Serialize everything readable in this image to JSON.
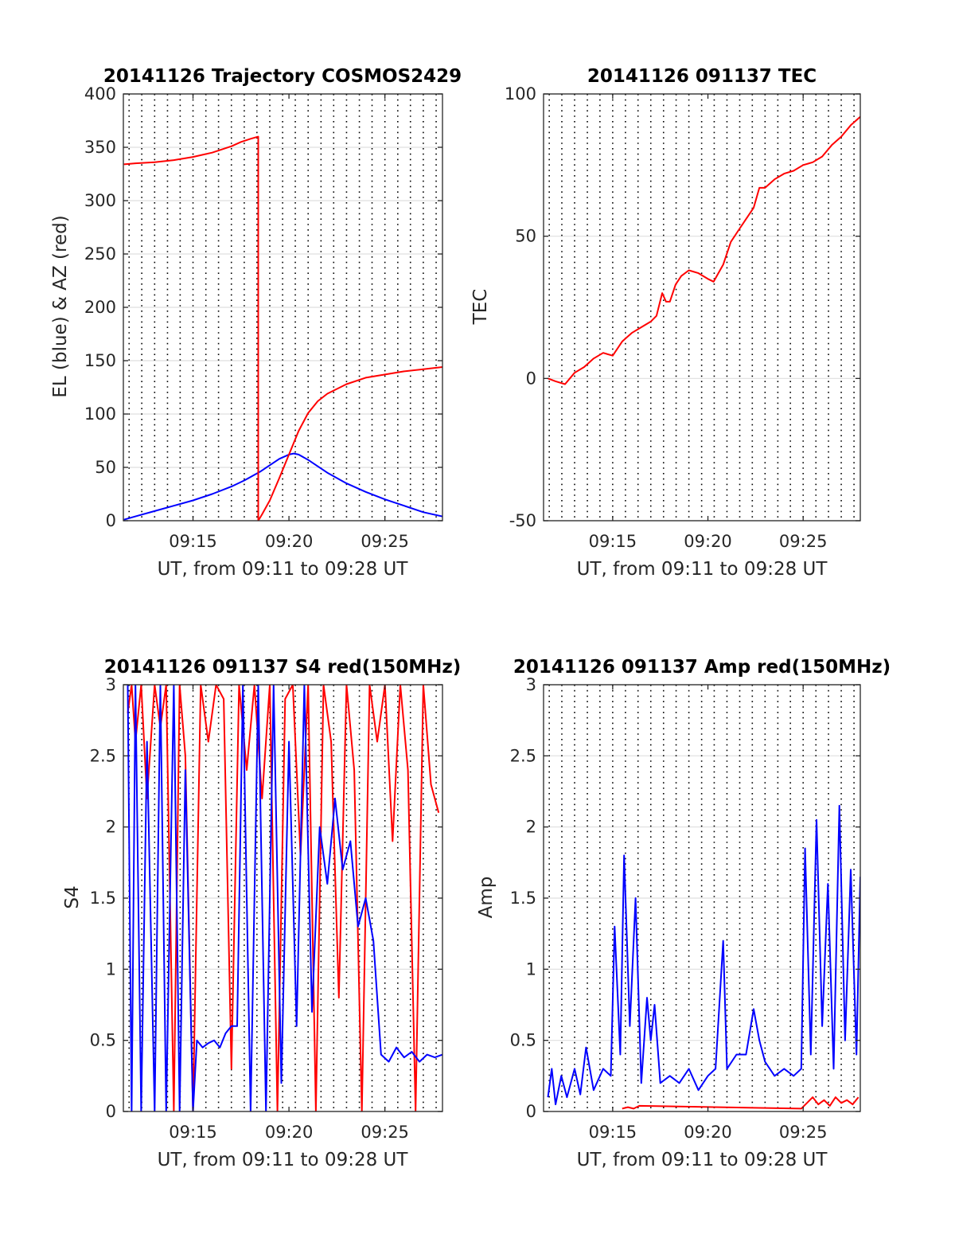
{
  "figure": {
    "date": "20141126"
  },
  "chart_data": [
    {
      "id": "trajectory",
      "type": "line",
      "title": "20141126 Trajectory COSMOS2429",
      "xlabel": "UT, from 09:11 to 09:28 UT",
      "ylabel": "EL (blue) & AZ (red)",
      "x_unit": "minutes after 09:00 UT",
      "xlim": [
        11.37,
        28.0
      ],
      "ylim": [
        0,
        400
      ],
      "x_ticks": [
        {
          "value": 15,
          "label": "09:15"
        },
        {
          "value": 20,
          "label": "09:20"
        },
        {
          "value": 25,
          "label": "09:25"
        }
      ],
      "y_ticks": [
        0,
        50,
        100,
        150,
        200,
        250,
        300,
        350,
        400
      ],
      "minor_x_grid": [
        11.67,
        12.33,
        13.0,
        13.67,
        14.33,
        15.0,
        15.67,
        16.33,
        17.0,
        17.67,
        18.33,
        19.0,
        19.67,
        20.33,
        21.0,
        21.67,
        22.33,
        23.0,
        23.67,
        24.33,
        25.0,
        25.67,
        26.33,
        27.0,
        27.67
      ],
      "grid": true,
      "series": [
        {
          "name": "EL",
          "color": "#0000ff",
          "x": [
            11.4,
            12.0,
            13.0,
            14.0,
            15.0,
            16.0,
            17.0,
            17.7,
            18.5,
            19.0,
            19.5,
            20.0,
            20.25,
            20.5,
            21.0,
            21.5,
            22.0,
            23.0,
            24.0,
            25.0,
            26.0,
            27.0,
            28.0
          ],
          "y": [
            1,
            4,
            9,
            14,
            19,
            25,
            32,
            38,
            46,
            52,
            58,
            62,
            63,
            62,
            57,
            51,
            45,
            35,
            27,
            20,
            14,
            8,
            4
          ]
        },
        {
          "name": "AZ",
          "color": "#ff0000",
          "x": [
            11.4,
            12.0,
            13.0,
            14.0,
            15.0,
            15.5,
            16.0,
            16.5,
            17.0,
            17.5,
            18.0,
            18.4,
            18.4,
            18.6,
            19.0,
            19.5,
            20.0,
            20.5,
            21.0,
            21.5,
            22.0,
            23.0,
            24.0,
            25.0,
            26.0,
            27.0,
            28.0
          ],
          "y": [
            334,
            335,
            336,
            338,
            341,
            343,
            345,
            348,
            351,
            355,
            358,
            360,
            0,
            6,
            19,
            40,
            62,
            84,
            101,
            112,
            119,
            128,
            134,
            137,
            140,
            142,
            144
          ]
        }
      ]
    },
    {
      "id": "tec",
      "type": "line",
      "title": "20141126 091137 TEC",
      "xlabel": "UT, from 09:11 to 09:28 UT",
      "ylabel": "TEC",
      "x_unit": "minutes after 09:00 UT",
      "xlim": [
        11.37,
        28.0
      ],
      "ylim": [
        -50,
        100
      ],
      "x_ticks": [
        {
          "value": 15,
          "label": "09:15"
        },
        {
          "value": 20,
          "label": "09:20"
        },
        {
          "value": 25,
          "label": "09:25"
        }
      ],
      "y_ticks": [
        -50,
        0,
        50,
        100
      ],
      "minor_x_grid": [
        11.67,
        12.33,
        13.0,
        13.67,
        14.33,
        15.0,
        15.67,
        16.33,
        17.0,
        17.67,
        18.33,
        19.0,
        19.67,
        20.33,
        21.0,
        21.67,
        22.33,
        23.0,
        23.67,
        24.33,
        25.0,
        25.67,
        26.33,
        27.0,
        27.67
      ],
      "grid": true,
      "series": [
        {
          "name": "TEC",
          "color": "#ff0000",
          "x": [
            11.6,
            12.0,
            12.5,
            13.0,
            13.5,
            14.0,
            14.5,
            15.0,
            15.5,
            16.0,
            16.5,
            17.0,
            17.3,
            17.6,
            17.8,
            18.0,
            18.3,
            18.6,
            19.0,
            19.5,
            20.0,
            20.3,
            20.8,
            21.2,
            21.6,
            22.0,
            22.4,
            22.7,
            23.0,
            23.5,
            24.0,
            24.5,
            25.0,
            25.5,
            26.0,
            26.5,
            27.0,
            27.5,
            28.0
          ],
          "y": [
            0,
            -1,
            -2,
            2,
            4,
            7,
            9,
            8,
            13,
            16,
            18,
            20,
            22,
            30,
            27,
            27,
            33,
            36,
            38,
            37,
            35,
            34,
            40,
            48,
            52,
            56,
            60,
            67,
            67,
            70,
            72,
            73,
            75,
            76,
            78,
            82,
            85,
            89,
            92
          ]
        }
      ]
    },
    {
      "id": "s4",
      "type": "line",
      "title": "20141126 091137 S4 red(150MHz)",
      "xlabel": "UT, from 09:11 to 09:28 UT",
      "ylabel": "S4",
      "x_unit": "minutes after 09:00 UT",
      "xlim": [
        11.37,
        28.0
      ],
      "ylim": [
        0,
        3
      ],
      "x_ticks": [
        {
          "value": 15,
          "label": "09:15"
        },
        {
          "value": 20,
          "label": "09:20"
        },
        {
          "value": 25,
          "label": "09:25"
        }
      ],
      "y_ticks": [
        0,
        0.5,
        1,
        1.5,
        2,
        2.5,
        3
      ],
      "y_tick_labels": [
        "0",
        "0.5",
        "1",
        "1.5",
        "2",
        "2.5",
        "3"
      ],
      "minor_x_grid": [
        11.67,
        12.33,
        13.0,
        13.67,
        14.33,
        15.0,
        15.67,
        16.33,
        17.0,
        17.67,
        18.33,
        19.0,
        19.67,
        20.33,
        21.0,
        21.67,
        22.33,
        23.0,
        23.67,
        24.33,
        25.0,
        25.67,
        26.33,
        27.0,
        27.67
      ],
      "grid": true,
      "series": [
        {
          "name": "S4 red",
          "color": "#ff0000",
          "x": [
            11.6,
            11.8,
            12.0,
            12.3,
            12.6,
            13.0,
            13.3,
            13.6,
            14.0,
            14.3,
            14.6,
            15.0,
            15.4,
            15.8,
            16.2,
            16.6,
            17.0,
            17.4,
            17.8,
            18.2,
            18.6,
            19.0,
            19.4,
            19.8,
            20.2,
            20.6,
            21.0,
            21.4,
            21.8,
            22.2,
            22.6,
            23.0,
            23.4,
            23.8,
            24.2,
            24.6,
            25.0,
            25.4,
            25.8,
            26.2,
            26.6,
            27.0,
            27.4,
            27.8
          ],
          "y": [
            2.8,
            3.0,
            2.6,
            3.0,
            2.2,
            3.0,
            2.7,
            3.0,
            0.0,
            3.0,
            2.5,
            0.0,
            3.0,
            2.6,
            3.0,
            2.9,
            0.3,
            3.0,
            2.4,
            3.0,
            2.2,
            3.0,
            0.0,
            2.9,
            3.0,
            1.8,
            3.0,
            0.0,
            3.0,
            2.6,
            0.8,
            3.0,
            2.4,
            0.0,
            3.0,
            2.6,
            3.0,
            1.9,
            3.0,
            2.4,
            0.0,
            3.0,
            2.3,
            2.1
          ]
        },
        {
          "name": "S4 blue",
          "color": "#0000ff",
          "x": [
            11.6,
            11.8,
            12.0,
            12.3,
            12.6,
            13.0,
            13.3,
            13.6,
            14.0,
            14.3,
            14.6,
            15.0,
            15.2,
            15.5,
            15.8,
            16.1,
            16.4,
            16.7,
            17.0,
            17.3,
            17.6,
            18.0,
            18.4,
            18.8,
            19.2,
            19.6,
            20.0,
            20.4,
            20.8,
            21.2,
            21.6,
            22.0,
            22.4,
            22.8,
            23.2,
            23.6,
            24.0,
            24.4,
            24.8,
            25.2,
            25.6,
            26.0,
            26.4,
            26.8,
            27.2,
            27.6,
            28.0
          ],
          "y": [
            3.0,
            0.0,
            3.0,
            0.0,
            2.6,
            0.0,
            3.0,
            0.0,
            3.0,
            0.0,
            2.4,
            0.0,
            0.5,
            0.45,
            0.48,
            0.5,
            0.45,
            0.55,
            0.6,
            0.6,
            3.0,
            0.0,
            3.0,
            0.0,
            3.0,
            0.2,
            2.6,
            0.6,
            3.0,
            0.7,
            2.0,
            1.6,
            2.2,
            1.7,
            1.9,
            1.3,
            1.5,
            1.2,
            0.4,
            0.35,
            0.45,
            0.38,
            0.42,
            0.35,
            0.4,
            0.38,
            0.4
          ]
        }
      ]
    },
    {
      "id": "amp",
      "type": "line",
      "title": "20141126 091137 Amp red(150MHz)",
      "xlabel": "UT, from 09:11 to 09:28 UT",
      "ylabel": "Amp",
      "x_unit": "minutes after 09:00 UT",
      "xlim": [
        11.37,
        28.0
      ],
      "ylim": [
        0,
        3
      ],
      "x_ticks": [
        {
          "value": 15,
          "label": "09:15"
        },
        {
          "value": 20,
          "label": "09:20"
        },
        {
          "value": 25,
          "label": "09:25"
        }
      ],
      "y_ticks": [
        0,
        0.5,
        1,
        1.5,
        2,
        2.5,
        3
      ],
      "y_tick_labels": [
        "0",
        "0.5",
        "1",
        "1.5",
        "2",
        "2.5",
        "3"
      ],
      "minor_x_grid": [
        11.67,
        12.33,
        13.0,
        13.67,
        14.33,
        15.0,
        15.67,
        16.33,
        17.0,
        17.67,
        18.33,
        19.0,
        19.67,
        20.33,
        21.0,
        21.67,
        22.33,
        23.0,
        23.67,
        24.33,
        25.0,
        25.67,
        26.33,
        27.0,
        27.67
      ],
      "grid": true,
      "series": [
        {
          "name": "Amp blue",
          "color": "#0000ff",
          "x": [
            11.6,
            11.8,
            12.0,
            12.3,
            12.6,
            13.0,
            13.3,
            13.6,
            14.0,
            14.5,
            14.9,
            15.1,
            15.4,
            15.6,
            15.9,
            16.2,
            16.5,
            16.8,
            17.0,
            17.2,
            17.5,
            18.0,
            18.5,
            19.0,
            19.5,
            20.0,
            20.4,
            20.8,
            21.0,
            21.5,
            22.0,
            22.4,
            22.7,
            23.0,
            23.5,
            24.0,
            24.5,
            24.9,
            25.1,
            25.4,
            25.7,
            26.0,
            26.3,
            26.6,
            26.9,
            27.2,
            27.5,
            27.8,
            28.0
          ],
          "y": [
            0.1,
            0.3,
            0.05,
            0.25,
            0.1,
            0.3,
            0.12,
            0.45,
            0.15,
            0.3,
            0.25,
            1.3,
            0.4,
            1.8,
            0.6,
            1.5,
            0.2,
            0.8,
            0.5,
            0.75,
            0.2,
            0.25,
            0.2,
            0.3,
            0.15,
            0.25,
            0.3,
            1.2,
            0.3,
            0.4,
            0.4,
            0.72,
            0.5,
            0.35,
            0.25,
            0.3,
            0.25,
            0.3,
            1.85,
            0.4,
            2.05,
            0.6,
            1.6,
            0.3,
            2.15,
            0.5,
            1.7,
            0.4,
            1.65
          ]
        },
        {
          "name": "Amp red",
          "color": "#ff0000",
          "x": [
            15.5,
            15.8,
            16.1,
            16.4,
            24.9,
            25.2,
            25.5,
            25.8,
            26.1,
            26.4,
            26.7,
            27.0,
            27.3,
            27.6,
            27.9
          ],
          "y": [
            0.02,
            0.03,
            0.02,
            0.04,
            0.02,
            0.06,
            0.1,
            0.05,
            0.08,
            0.04,
            0.1,
            0.06,
            0.08,
            0.05,
            0.1
          ]
        }
      ]
    }
  ]
}
